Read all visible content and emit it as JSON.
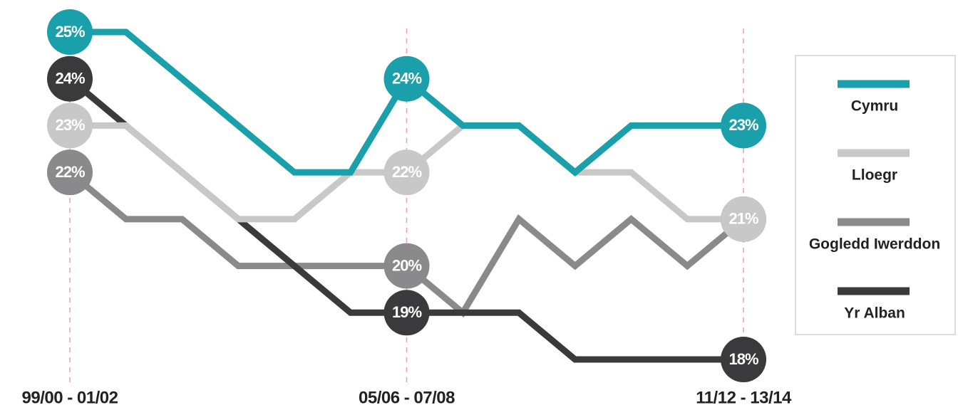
{
  "chart_data": {
    "type": "line",
    "categories": [
      "99/00 - 01/02",
      null,
      null,
      null,
      null,
      null,
      "05/06 - 07/08",
      null,
      null,
      null,
      null,
      null,
      "11/12 - 13/14"
    ],
    "series": [
      {
        "name": "Gogledd Iwerddon",
        "color": "#8a8a8d",
        "values": [
          22,
          21,
          21,
          20,
          20,
          20,
          20,
          19,
          21,
          20,
          21,
          20,
          21
        ],
        "value_labels": [
          "22%",
          null,
          null,
          null,
          null,
          null,
          "20%",
          null,
          null,
          null,
          null,
          null,
          "21%"
        ]
      },
      {
        "name": "Yr Alban",
        "color": "#3a3a3d",
        "values": [
          24,
          23,
          22,
          21,
          20,
          19,
          19,
          19,
          19,
          18,
          18,
          18,
          18
        ],
        "value_labels": [
          "24%",
          null,
          null,
          null,
          null,
          null,
          "19%",
          null,
          null,
          null,
          null,
          null,
          "18%"
        ]
      },
      {
        "name": "Lloegr",
        "color": "#c8c8c9",
        "values": [
          23,
          23,
          22,
          21,
          21,
          22,
          22,
          23,
          23,
          22,
          22,
          21,
          21
        ],
        "value_labels": [
          "23%",
          null,
          null,
          null,
          null,
          null,
          "22%",
          null,
          null,
          null,
          null,
          null,
          "21%"
        ]
      },
      {
        "name": "Cymru",
        "color": "#1aa0aa",
        "values": [
          25,
          25,
          24,
          23,
          22,
          22,
          24,
          23,
          23,
          22,
          23,
          23,
          23
        ],
        "value_labels": [
          "25%",
          null,
          null,
          null,
          null,
          null,
          "24%",
          null,
          null,
          null,
          null,
          null,
          "23%"
        ]
      }
    ],
    "legend_order": [
      "Cymru",
      "Lloegr",
      "Gogledd Iwerddon",
      "Yr Alban"
    ],
    "ylim": [
      18,
      25
    ],
    "grid": false,
    "legend": "right"
  }
}
